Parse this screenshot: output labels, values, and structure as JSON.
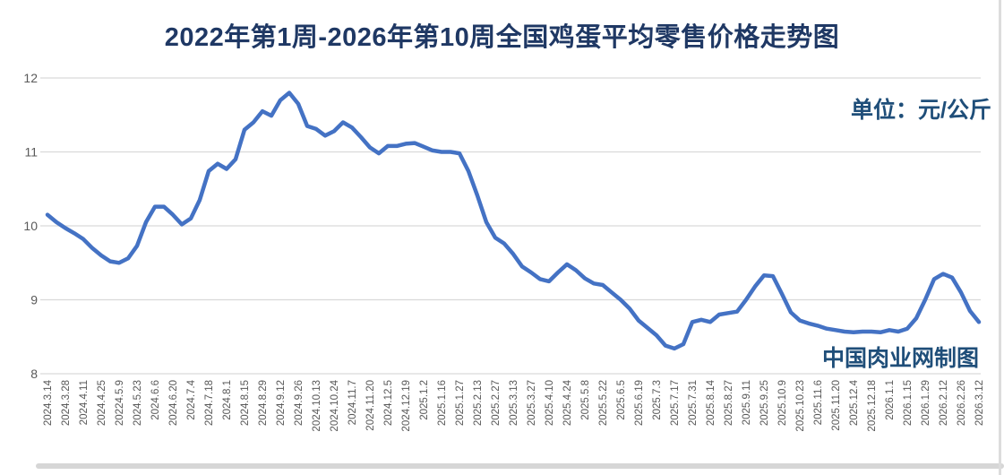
{
  "title": "2022年第1周-2026年第10周全国鸡蛋平均零售价格走势图",
  "unit_label": "单位：元/公斤",
  "watermark": "中国肉业网制图",
  "colors": {
    "title_text": "#1f3864",
    "accent_text": "#1f4e79",
    "line": "#4472c4",
    "grid": "#d9d9d9",
    "axis_text": "#595959"
  },
  "chart_data": {
    "type": "line",
    "title": "2022年第1周-2026年第10周全国鸡蛋平均零售价格走势图",
    "ylabel": "元/公斤",
    "xlabel": "",
    "ylim": [
      8,
      12
    ],
    "yticks": [
      8,
      9,
      10,
      11,
      12
    ],
    "grid": true,
    "legend_position": "none",
    "x_labels": [
      "2024.3.14",
      "2024.3.28",
      "2024.4.11",
      "2024.4.25",
      "20224.5.9",
      "2024.5.23",
      "2024.6.6",
      "2024.6.20",
      "2024.7.4",
      "2024.7.18",
      "2024.8.1",
      "2024.8.15",
      "2024.8.29",
      "2024.9.12",
      "2024.9.26",
      "2024.10.13",
      "2024.10.24",
      "2024.11.7",
      "2024.11.20",
      "2024.12.5",
      "2024.12.19",
      "2025.1.2",
      "2025.1.16",
      "2025.1.27",
      "2025.2.13",
      "2025.2.27",
      "2025.3.13",
      "2025.3.27",
      "2025.4.10",
      "2025.4.24",
      "2025.5.8",
      "2025.5.22",
      "2025.6.5",
      "2025.6.19",
      "2025.7.3",
      "2025.7.17",
      "2025.7.31",
      "2025.8.14",
      "2025.8.27",
      "2025.9.11",
      "2025.9.25",
      "2025.10.9",
      "2025.10.23",
      "2025.11.6",
      "2025.11.20",
      "2025.12.4",
      "2025.12.18",
      "2026.1.1",
      "2026.1.15",
      "2026.1.29",
      "2026.2.12",
      "2026.2.26",
      "2026.3.12"
    ],
    "series": [
      {
        "name": "全国鸡蛋平均零售价格",
        "note": "weekly values, one label shown every 2 points",
        "values": [
          10.15,
          10.05,
          9.97,
          9.9,
          9.82,
          9.7,
          9.6,
          9.52,
          9.5,
          9.56,
          9.73,
          10.05,
          10.26,
          10.26,
          10.15,
          10.02,
          10.1,
          10.35,
          10.74,
          10.84,
          10.77,
          10.9,
          11.3,
          11.4,
          11.55,
          11.49,
          11.7,
          11.8,
          11.65,
          11.35,
          11.31,
          11.22,
          11.28,
          11.4,
          11.33,
          11.2,
          11.06,
          10.98,
          11.08,
          11.08,
          11.11,
          11.12,
          11.07,
          11.02,
          11.0,
          11.0,
          10.98,
          10.74,
          10.41,
          10.05,
          9.84,
          9.76,
          9.62,
          9.45,
          9.37,
          9.28,
          9.25,
          9.37,
          9.48,
          9.4,
          9.29,
          9.22,
          9.2,
          9.1,
          9.0,
          8.88,
          8.72,
          8.62,
          8.52,
          8.38,
          8.34,
          8.4,
          8.7,
          8.73,
          8.7,
          8.8,
          8.82,
          8.84,
          9.0,
          9.18,
          9.33,
          9.32,
          9.08,
          8.83,
          8.72,
          8.68,
          8.65,
          8.61,
          8.59,
          8.57,
          8.56,
          8.57,
          8.57,
          8.56,
          8.59,
          8.57,
          8.61,
          8.75,
          9.0,
          9.28,
          9.35,
          9.3,
          9.1,
          8.85,
          8.7
        ]
      }
    ]
  }
}
